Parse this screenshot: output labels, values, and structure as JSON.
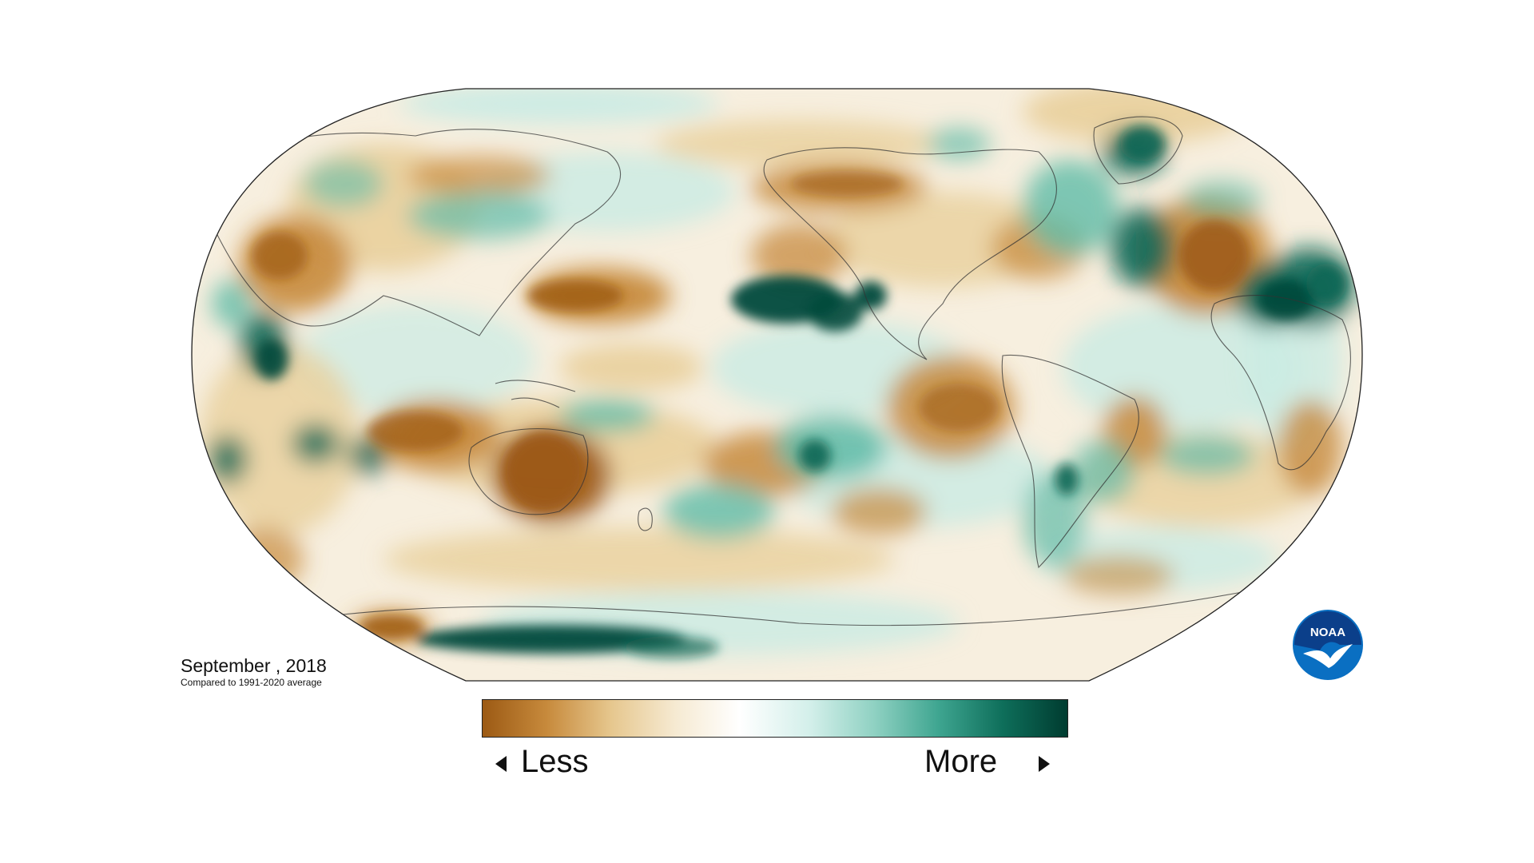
{
  "title": {
    "date": "September , 2018",
    "subtitle": "Compared to 1991-2020 average"
  },
  "legend": {
    "less_label": "Less",
    "more_label": "More",
    "colors": [
      "#9c5a14",
      "#c78a3c",
      "#e6c78e",
      "#f6ead2",
      "#ffffff",
      "#d3efea",
      "#8fd1c2",
      "#3ea590",
      "#0e6e5a",
      "#003c30"
    ]
  },
  "palette": {
    "dry_strong": "#9c5a14",
    "dry": "#c78a3c",
    "dry_light": "#e9cf9b",
    "neutral": "#ffffff",
    "wet_light": "#c9ebe4",
    "wet": "#5fbba8",
    "wet_strong": "#0b6655",
    "wet_deep": "#00493c",
    "ocean_base": "#f3efe4",
    "border": "#333333"
  },
  "logo": {
    "text": "NOAA",
    "icon": "noaa-logo-icon",
    "color": "#0a6fc2"
  }
}
